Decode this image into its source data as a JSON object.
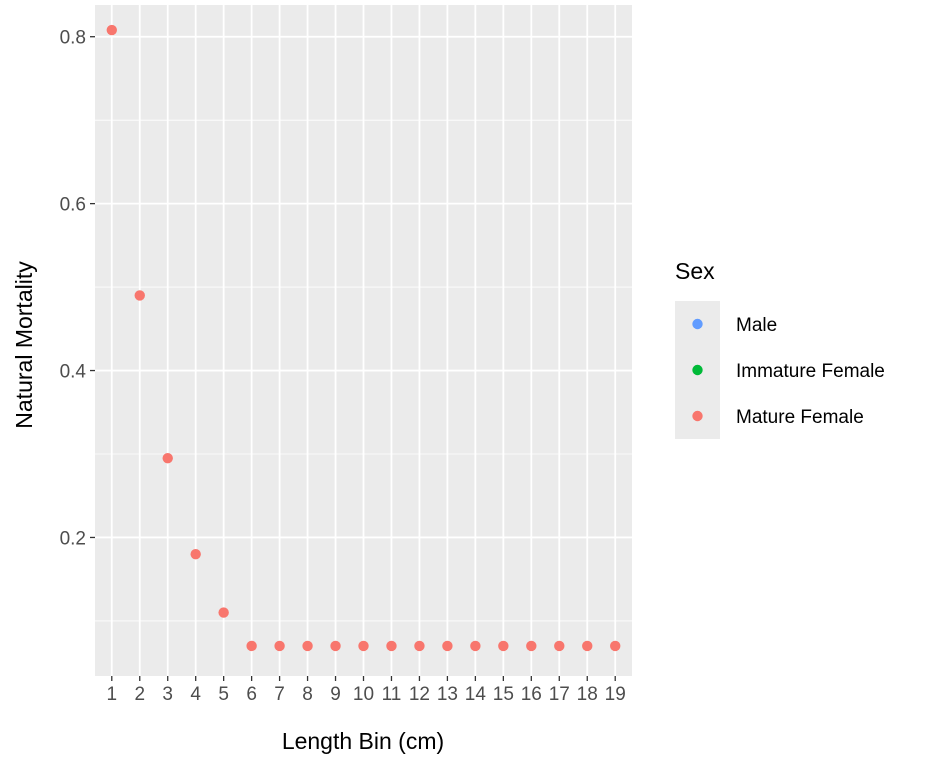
{
  "chart_data": {
    "type": "scatter",
    "xlabel": "Length Bin (cm)",
    "ylabel": "Natural Mortality",
    "x_ticks": [
      "1",
      "2",
      "3",
      "4",
      "5",
      "6",
      "7",
      "8",
      "9",
      "10",
      "11",
      "12",
      "13",
      "14",
      "15",
      "16",
      "17",
      "18",
      "19"
    ],
    "y_ticks": [
      "0.2",
      "0.4",
      "0.6",
      "0.8"
    ],
    "y_tick_values": [
      0.2,
      0.4,
      0.6,
      0.8
    ],
    "xlim": [
      0.4,
      19.6
    ],
    "ylim": [
      0.034,
      0.838
    ],
    "grid": true,
    "legend": {
      "title": "Sex",
      "placement": "right",
      "entries": [
        {
          "name": "Male",
          "color": "#619cff"
        },
        {
          "name": "Immature Female",
          "color": "#00ba38"
        },
        {
          "name": "Mature Female",
          "color": "#f8766d"
        }
      ]
    },
    "series": [
      {
        "name": "Mature Female",
        "color": "#f8766d",
        "x": [
          1,
          2,
          3,
          4,
          5,
          6,
          7,
          8,
          9,
          10,
          11,
          12,
          13,
          14,
          15,
          16,
          17,
          18,
          19
        ],
        "y": [
          0.808,
          0.49,
          0.295,
          0.18,
          0.11,
          0.07,
          0.07,
          0.07,
          0.07,
          0.07,
          0.07,
          0.07,
          0.07,
          0.07,
          0.07,
          0.07,
          0.07,
          0.07,
          0.07
        ]
      }
    ]
  },
  "colors": {
    "panel_background": "#ebebeb",
    "grid_major": "#ffffff"
  }
}
